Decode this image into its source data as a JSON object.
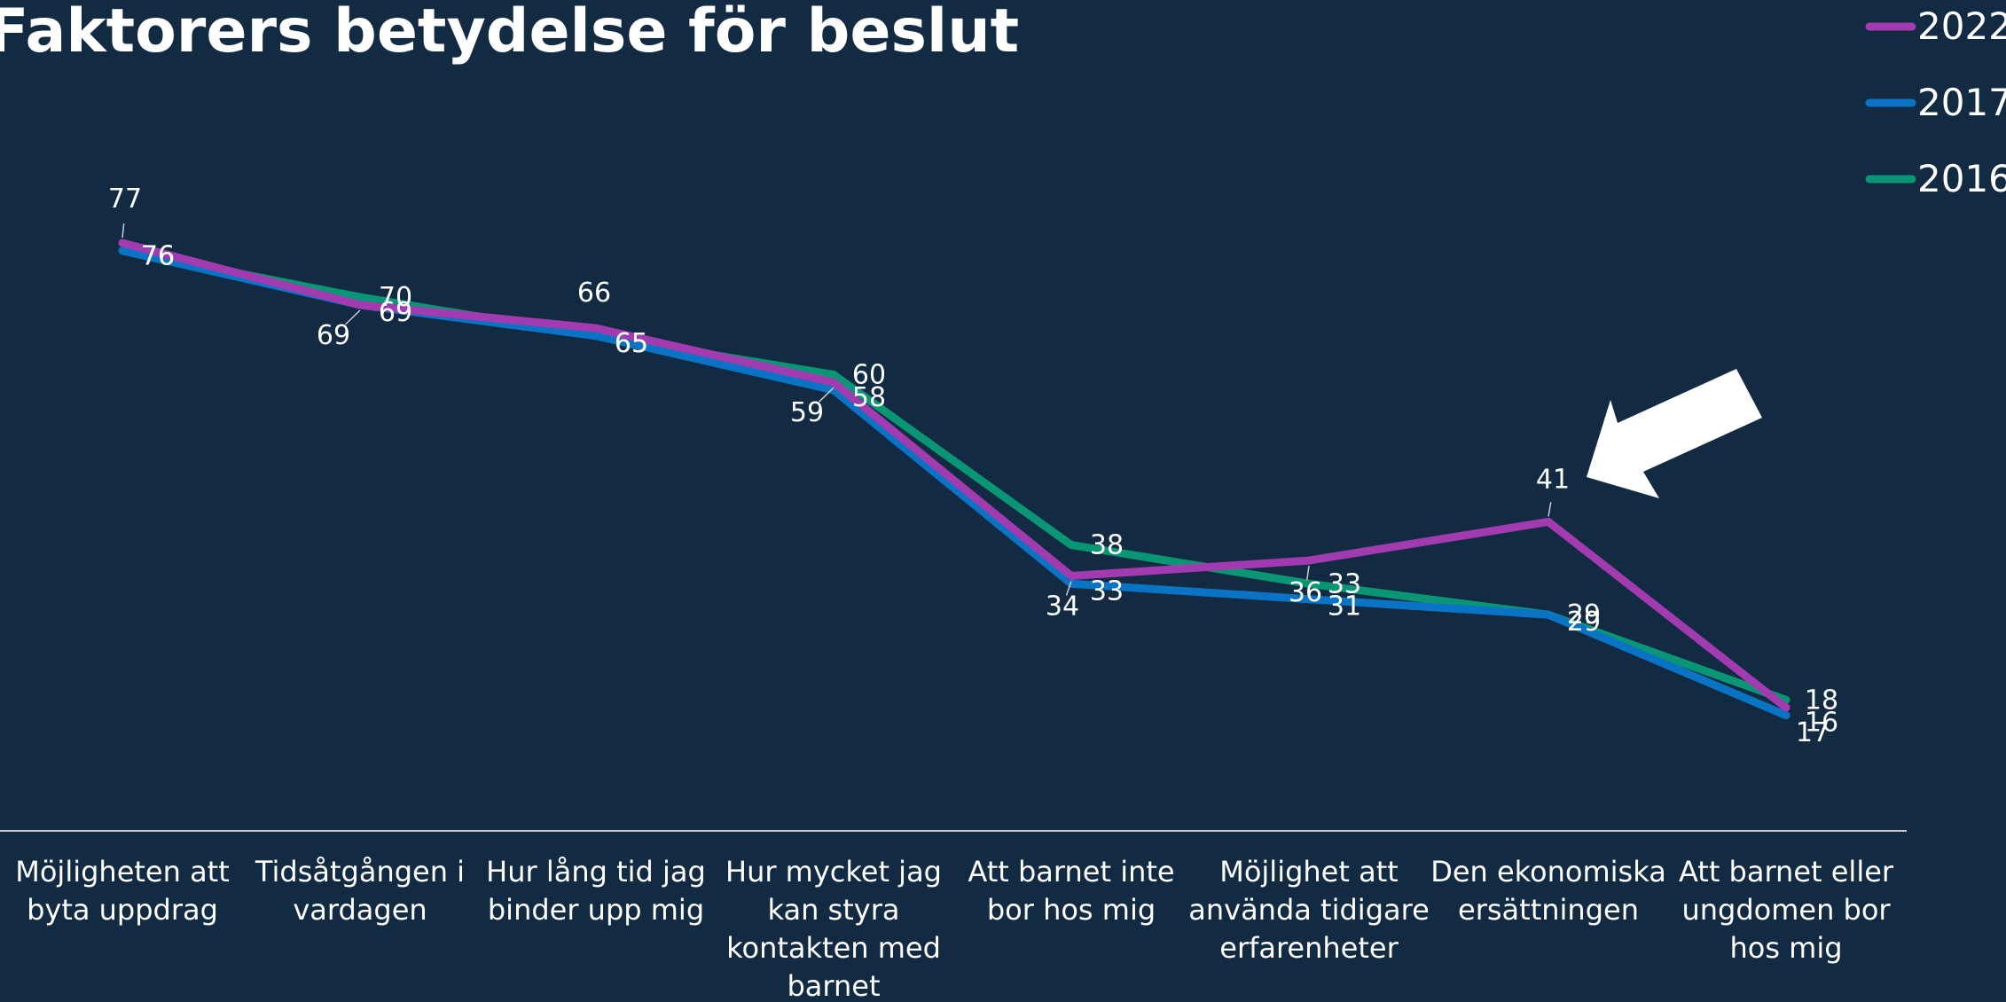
{
  "chart_data": {
    "type": "line",
    "title": "Faktorers betydelse för beslut",
    "xlabel": "",
    "ylabel": "",
    "ylim": [
      0,
      100
    ],
    "grid": false,
    "legend_position": "top-right",
    "categories": [
      [
        "Möjligheten att",
        "byta uppdrag"
      ],
      [
        "Tidsåtgången i",
        "vardagen"
      ],
      [
        "Hur lång tid jag",
        "binder upp mig"
      ],
      [
        "Hur mycket jag",
        "kan styra",
        "kontakten med",
        "barnet"
      ],
      [
        "Att barnet inte",
        "bor hos mig"
      ],
      [
        "Möjlighet att",
        "använda tidigare",
        "erfarenheter"
      ],
      [
        "Den ekonomiska",
        "ersättningen"
      ],
      [
        "Att barnet eller",
        "ungdomen bor",
        "hos mig"
      ]
    ],
    "series": [
      {
        "name": "2022",
        "color": "#a23bb0",
        "values": [
          77,
          69,
          66,
          59,
          34,
          36,
          41,
          17
        ]
      },
      {
        "name": "2017",
        "color": "#0b73c4",
        "values": [
          76,
          69,
          65,
          58,
          33,
          31,
          29,
          16
        ]
      },
      {
        "name": "2016",
        "color": "#0a9675",
        "values": [
          76,
          70,
          65,
          60,
          38,
          33,
          29,
          18
        ]
      }
    ],
    "annotation": {
      "type": "arrow",
      "color": "#ffffff",
      "target": "2022 – Den ekonomiska ersättningen"
    }
  }
}
